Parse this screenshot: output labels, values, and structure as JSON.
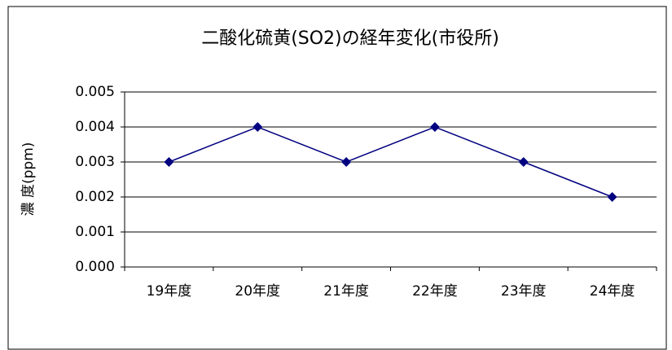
{
  "chart_data": {
    "type": "line",
    "title": "二酸化硫黄(SO2)の経年変化(市役所)",
    "y_label": "濃 度(ppm)",
    "categories": [
      "19年度",
      "20年度",
      "21年度",
      "22年度",
      "23年度",
      "24年度"
    ],
    "series": [
      {
        "name": "二酸化硫黄",
        "color": "#000080",
        "values": [
          0.003,
          0.004,
          0.003,
          0.004,
          0.003,
          0.002
        ]
      }
    ],
    "ylim": [
      0,
      0.005
    ],
    "yticks": [
      {
        "value": 0,
        "label": "0.000"
      },
      0.001,
      0.002,
      0.003,
      0.004,
      0.005
    ],
    "grid": true
  }
}
